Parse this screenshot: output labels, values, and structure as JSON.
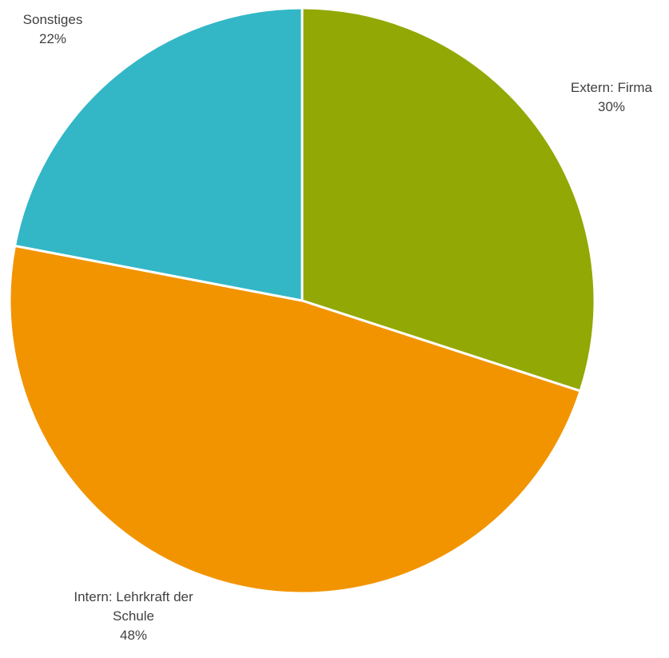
{
  "chart_data": {
    "type": "pie",
    "slices": [
      {
        "label_lines": [
          "Extern: Firma"
        ],
        "value": 30,
        "value_label": "30%",
        "color": "#92a804"
      },
      {
        "label_lines": [
          "Intern: Lehrkraft der",
          "Schule"
        ],
        "value": 48,
        "value_label": "48%",
        "color": "#f29400"
      },
      {
        "label_lines": [
          "Sonstiges"
        ],
        "value": 22,
        "value_label": "22%",
        "color": "#33b7c7"
      }
    ],
    "start": "12 o'clock",
    "direction": "clockwise"
  }
}
